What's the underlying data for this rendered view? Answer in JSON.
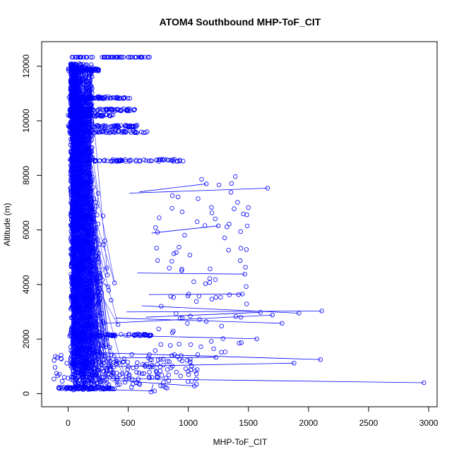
{
  "chart_data": {
    "type": "scatter",
    "title": "ATOM4 Southbound MHP-ToF_CIT",
    "xlabel": "MHP-ToF_CIT",
    "ylabel": "Altitude (m)",
    "xlim": [
      -220,
      3070
    ],
    "ylim": [
      -480,
      12900
    ],
    "xticks": [
      0,
      500,
      1000,
      1500,
      2000,
      2500,
      3000
    ],
    "yticks": [
      0,
      2000,
      4000,
      6000,
      8000,
      10000,
      12000
    ],
    "xtick_labels": [
      "0",
      "500",
      "1000",
      "1500",
      "2000",
      "2500",
      "3000"
    ],
    "ytick_labels": [
      "0",
      "2000",
      "4000",
      "6000",
      "8000",
      "10000",
      "12000"
    ],
    "grid": false,
    "legend": "none",
    "marker": "open-circle",
    "connected": true,
    "series_color": "#0000ff",
    "outliers": [
      {
        "x": 2960,
        "y": 400
      },
      {
        "x": 2110,
        "y": 3030
      },
      {
        "x": 2100,
        "y": 1250
      },
      {
        "x": 1920,
        "y": 2950
      },
      {
        "x": 1880,
        "y": 1120
      },
      {
        "x": 1780,
        "y": 2580
      },
      {
        "x": 1700,
        "y": 2880
      },
      {
        "x": 1660,
        "y": 7530
      },
      {
        "x": 1600,
        "y": 2980
      },
      {
        "x": 1570,
        "y": 2010
      },
      {
        "x": 1470,
        "y": 4380
      },
      {
        "x": 1450,
        "y": 3650
      },
      {
        "x": 1250,
        "y": 6150
      },
      {
        "x": 1230,
        "y": 1330
      },
      {
        "x": 1150,
        "y": 7690
      },
      {
        "x": 1050,
        "y": 280
      },
      {
        "x": 720,
        "y": 100
      },
      {
        "x": 690,
        "y": 60
      }
    ],
    "top_band": {
      "y": 12330,
      "x_range": [
        30,
        680
      ]
    },
    "dense_layers": [
      {
        "y": 11870,
        "x_range": [
          0,
          270
        ]
      },
      {
        "y": 10850,
        "x_range": [
          0,
          520
        ]
      },
      {
        "y": 10400,
        "x_range": [
          0,
          560
        ]
      },
      {
        "y": 10200,
        "x_range": [
          0,
          380
        ]
      },
      {
        "y": 9800,
        "x_range": [
          0,
          600
        ]
      },
      {
        "y": 9600,
        "x_range": [
          0,
          660
        ]
      },
      {
        "y": 8550,
        "x_range": [
          0,
          970
        ]
      },
      {
        "y": 2150,
        "x_range": [
          0,
          700
        ]
      },
      {
        "y": 200,
        "x_range": [
          -80,
          380
        ]
      }
    ]
  }
}
